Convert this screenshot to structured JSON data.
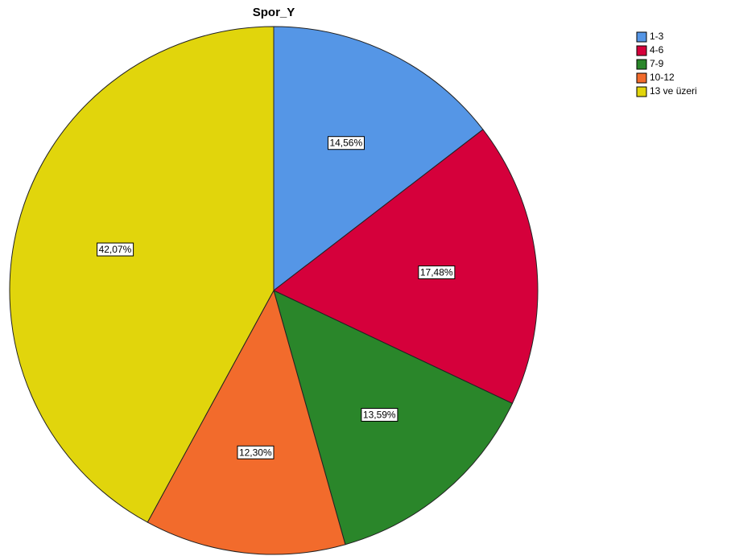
{
  "chart_data": {
    "type": "pie",
    "title": "Spor_Y",
    "categories": [
      "1-3",
      "4-6",
      "7-9",
      "10-12",
      "13 ve üzeri"
    ],
    "values": [
      14.56,
      17.48,
      13.59,
      12.3,
      42.07
    ],
    "value_labels": [
      "14,56%",
      "17,48%",
      "13,59%",
      "12,30%",
      "42,07%"
    ],
    "colors": [
      "#5596e6",
      "#d5003b",
      "#2a862a",
      "#f26b2c",
      "#e1d50c"
    ],
    "legend": "top-right"
  }
}
